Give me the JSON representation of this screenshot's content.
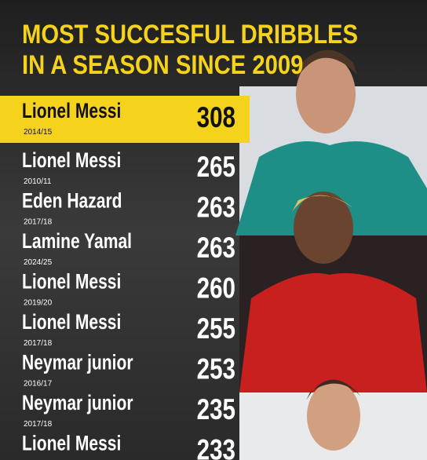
{
  "header": {
    "title_lines": [
      "MOST SUCCESFUL DRIBBLES",
      "IN A SEASON SINCE 2009"
    ]
  },
  "table": {
    "rows": [
      {
        "name": "Lionel Messi",
        "season": "2014/15",
        "value": 308
      },
      {
        "name": "Lionel Messi",
        "season": "2010/11",
        "value": 265
      },
      {
        "name": "Eden Hazard",
        "season": "2017/18",
        "value": 263
      },
      {
        "name": "Lamine Yamal",
        "season": "2024/25",
        "value": 263
      },
      {
        "name": "Lionel Messi",
        "season": "2019/20",
        "value": 260
      },
      {
        "name": "Lionel Messi",
        "season": "2017/18",
        "value": 255
      },
      {
        "name": "Neymar junior",
        "season": "2016/17",
        "value": 253
      },
      {
        "name": "Neymar junior",
        "season": "2017/18",
        "value": 235
      },
      {
        "name": "Lionel Messi",
        "value": 233
      }
    ]
  }
}
